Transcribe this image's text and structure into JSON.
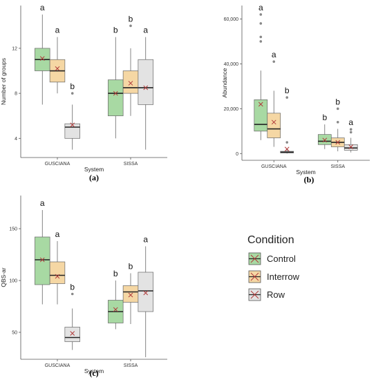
{
  "figure": {
    "legend": {
      "title": "Condition",
      "items": [
        {
          "label": "Control",
          "fill": "#a8d9a3"
        },
        {
          "label": "Interrow",
          "fill": "#f5d7a4"
        },
        {
          "label": "Row",
          "fill": "#e3e3e3"
        }
      ]
    }
  },
  "chart_data": [
    {
      "type": "box",
      "panel_label": "(a)",
      "xlabel": "System",
      "ylabel": "Number of groups",
      "categories": [
        "GUSCIANA",
        "SISSA"
      ],
      "yticks": [
        4,
        8,
        12
      ],
      "yticklabels": [
        "4",
        "8",
        "12"
      ],
      "ylim": [
        2.3,
        15.8
      ],
      "series": [
        {
          "name": "Control",
          "fill": "#a8d9a3",
          "boxes": [
            {
              "min": 7,
              "q1": 10,
              "median": 11,
              "q3": 12,
              "max": 15,
              "mean": 11.1,
              "outliers": [],
              "letter": "a"
            },
            {
              "min": 4,
              "q1": 6,
              "median": 8,
              "q3": 9.2,
              "max": 13,
              "mean": 8,
              "outliers": [],
              "letter": "b"
            }
          ]
        },
        {
          "name": "Interrow",
          "fill": "#f5d7a4",
          "boxes": [
            {
              "min": 8,
              "q1": 9,
              "median": 10,
              "q3": 11,
              "max": 13,
              "mean": 10.2,
              "outliers": [],
              "letter": "a"
            },
            {
              "min": 6,
              "q1": 8,
              "median": 8.5,
              "q3": 10,
              "max": 12,
              "mean": 8.9,
              "outliers": [
                14
              ],
              "letter": "b"
            }
          ]
        },
        {
          "name": "Row",
          "fill": "#e3e3e3",
          "boxes": [
            {
              "min": 3,
              "q1": 4,
              "median": 5,
              "q3": 5.3,
              "max": 7,
              "mean": 5.2,
              "outliers": [
                8
              ],
              "letter": "b"
            },
            {
              "min": 3,
              "q1": 7,
              "median": 8.5,
              "q3": 11,
              "max": 13,
              "mean": 8.5,
              "outliers": [],
              "letter": "a"
            }
          ]
        }
      ]
    },
    {
      "type": "box",
      "panel_label": "(b)",
      "xlabel": "System",
      "ylabel": "Abundance",
      "categories": [
        "GUSCIANA",
        "SISSA"
      ],
      "yticks": [
        0,
        20000,
        40000,
        60000
      ],
      "yticklabels": [
        "0",
        "20,000",
        "40,000",
        "60,000"
      ],
      "ylim": [
        -3000,
        66000
      ],
      "series": [
        {
          "name": "Control",
          "fill": "#a8d9a3",
          "boxes": [
            {
              "min": 6000,
              "q1": 10000,
              "median": 13000,
              "q3": 24000,
              "max": 37000,
              "mean": 22000,
              "outliers": [
                50000,
                52000,
                58000,
                62000
              ],
              "letter": "a"
            },
            {
              "min": 2000,
              "q1": 4000,
              "median": 5500,
              "q3": 8500,
              "max": 13000,
              "mean": 6000,
              "outliers": [],
              "letter": "b"
            }
          ]
        },
        {
          "name": "Interrow",
          "fill": "#f5d7a4",
          "boxes": [
            {
              "min": 3000,
              "q1": 7000,
              "median": 11000,
              "q3": 18000,
              "max": 28000,
              "mean": 14000,
              "outliers": [
                41000
              ],
              "letter": "a"
            },
            {
              "min": 1000,
              "q1": 3000,
              "median": 5000,
              "q3": 7000,
              "max": 11000,
              "mean": 5000,
              "outliers": [
                14000,
                20000
              ],
              "letter": "b"
            }
          ]
        },
        {
          "name": "Row",
          "fill": "#e3e3e3",
          "boxes": [
            {
              "min": 0,
              "q1": 300,
              "median": 600,
              "q3": 1000,
              "max": 2000,
              "mean": 2000,
              "outliers": [
                5000,
                25000
              ],
              "letter": "b"
            },
            {
              "min": 500,
              "q1": 1500,
              "median": 2500,
              "q3": 4000,
              "max": 7000,
              "mean": 3000,
              "outliers": [
                9500,
                10800
              ],
              "letter": "a"
            }
          ]
        }
      ]
    },
    {
      "type": "box",
      "panel_label": "(c)",
      "xlabel": "System",
      "ylabel": "QBS-ar",
      "categories": [
        "GUSCIANA",
        "SISSA"
      ],
      "yticks": [
        50,
        100,
        150
      ],
      "yticklabels": [
        "50",
        "100",
        "150"
      ],
      "ylim": [
        24,
        182
      ],
      "series": [
        {
          "name": "Control",
          "fill": "#a8d9a3",
          "boxes": [
            {
              "min": 77,
              "q1": 96,
              "median": 120,
              "q3": 142,
              "max": 168,
              "mean": 120,
              "outliers": [],
              "letter": "a"
            },
            {
              "min": 53,
              "q1": 59,
              "median": 70,
              "q3": 81,
              "max": 100,
              "mean": 72,
              "outliers": [],
              "letter": "b"
            }
          ]
        },
        {
          "name": "Interrow",
          "fill": "#f5d7a4",
          "boxes": [
            {
              "min": 77,
              "q1": 97,
              "median": 105,
              "q3": 118,
              "max": 138,
              "mean": 104,
              "outliers": [],
              "letter": "a"
            },
            {
              "min": 58,
              "q1": 79,
              "median": 89,
              "q3": 95,
              "max": 107,
              "mean": 86,
              "outliers": [],
              "letter": "b"
            }
          ]
        },
        {
          "name": "Row",
          "fill": "#e3e3e3",
          "boxes": [
            {
              "min": 33,
              "q1": 41,
              "median": 45,
              "q3": 55,
              "max": 73,
              "mean": 49,
              "outliers": [
                87
              ],
              "letter": "b"
            },
            {
              "min": 26,
              "q1": 70,
              "median": 90,
              "q3": 108,
              "max": 133,
              "mean": 88,
              "outliers": [],
              "letter": "a"
            }
          ]
        }
      ]
    }
  ]
}
